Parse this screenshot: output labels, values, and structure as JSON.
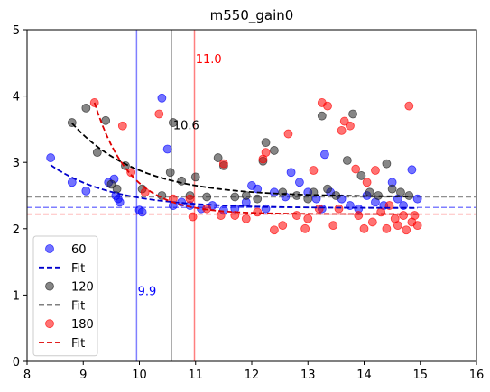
{
  "chart_data": {
    "type": "scatter",
    "title": "m550_gain0",
    "xlabel": "",
    "ylabel": "",
    "xlim": [
      8,
      16
    ],
    "ylim": [
      0,
      5
    ],
    "x_ticks": [
      "8",
      "9",
      "10",
      "11",
      "12",
      "13",
      "14",
      "15",
      "16"
    ],
    "y_ticks": [
      "0",
      "1",
      "2",
      "3",
      "4",
      "5"
    ],
    "grid": false,
    "legend_position": "lower-left",
    "series": [
      {
        "name": "60",
        "color": "#0000ff",
        "fit_label": "Fit",
        "fit_color": "#0000cc",
        "fit": {
          "a": 2.31,
          "b": 0.65,
          "k": 0.9
        },
        "asymptote": 2.32,
        "vline": 9.95,
        "vline_label": "9.9",
        "points": [
          [
            8.42,
            3.07
          ],
          [
            8.8,
            2.7
          ],
          [
            9.05,
            2.57
          ],
          [
            9.45,
            2.7
          ],
          [
            9.55,
            2.75
          ],
          [
            9.58,
            2.5
          ],
          [
            9.62,
            2.45
          ],
          [
            9.65,
            2.4
          ],
          [
            10.0,
            2.28
          ],
          [
            10.05,
            2.25
          ],
          [
            10.4,
            3.97
          ],
          [
            10.5,
            3.2
          ],
          [
            10.6,
            2.35
          ],
          [
            10.75,
            2.4
          ],
          [
            10.9,
            2.35
          ],
          [
            11.1,
            2.3
          ],
          [
            11.3,
            2.35
          ],
          [
            11.5,
            2.28
          ],
          [
            11.7,
            2.3
          ],
          [
            11.9,
            2.4
          ],
          [
            12.0,
            2.65
          ],
          [
            12.1,
            2.6
          ],
          [
            12.25,
            2.3
          ],
          [
            12.4,
            2.55
          ],
          [
            12.6,
            2.48
          ],
          [
            12.7,
            2.85
          ],
          [
            12.85,
            2.7
          ],
          [
            13.0,
            2.55
          ],
          [
            13.15,
            2.45
          ],
          [
            13.25,
            2.3
          ],
          [
            13.3,
            3.12
          ],
          [
            13.4,
            2.55
          ],
          [
            13.6,
            2.45
          ],
          [
            13.75,
            2.35
          ],
          [
            13.9,
            2.3
          ],
          [
            14.05,
            2.5
          ],
          [
            14.2,
            2.4
          ],
          [
            14.35,
            2.35
          ],
          [
            14.5,
            2.7
          ],
          [
            14.6,
            2.45
          ],
          [
            14.7,
            2.35
          ],
          [
            14.85,
            2.89
          ],
          [
            14.95,
            2.45
          ]
        ]
      },
      {
        "name": "120",
        "color": "#222222",
        "fit_label": "Fit",
        "fit_color": "#000000",
        "fit": {
          "a": 2.48,
          "b": 1.11,
          "k": 0.85
        },
        "asymptote": 2.48,
        "vline": 10.57,
        "vline_label": "10.6",
        "points": [
          [
            8.8,
            3.6
          ],
          [
            9.05,
            3.82
          ],
          [
            9.25,
            3.15
          ],
          [
            9.4,
            3.63
          ],
          [
            9.5,
            2.67
          ],
          [
            9.6,
            2.6
          ],
          [
            9.75,
            2.95
          ],
          [
            10.05,
            2.6
          ],
          [
            10.4,
            2.5
          ],
          [
            10.55,
            2.85
          ],
          [
            10.6,
            3.6
          ],
          [
            10.75,
            2.72
          ],
          [
            10.9,
            2.5
          ],
          [
            11.0,
            2.78
          ],
          [
            11.2,
            2.48
          ],
          [
            11.4,
            3.07
          ],
          [
            11.5,
            2.95
          ],
          [
            11.7,
            2.48
          ],
          [
            11.9,
            2.5
          ],
          [
            12.1,
            2.45
          ],
          [
            12.2,
            3.02
          ],
          [
            12.25,
            3.3
          ],
          [
            12.4,
            3.18
          ],
          [
            12.55,
            2.55
          ],
          [
            12.8,
            2.5
          ],
          [
            13.0,
            2.45
          ],
          [
            13.1,
            2.55
          ],
          [
            13.25,
            3.7
          ],
          [
            13.35,
            2.6
          ],
          [
            13.5,
            2.5
          ],
          [
            13.7,
            3.03
          ],
          [
            13.8,
            3.73
          ],
          [
            13.95,
            2.8
          ],
          [
            14.1,
            2.55
          ],
          [
            14.25,
            2.5
          ],
          [
            14.4,
            2.98
          ],
          [
            14.5,
            2.6
          ],
          [
            14.65,
            2.55
          ],
          [
            14.8,
            2.5
          ]
        ]
      },
      {
        "name": "180",
        "color": "#ff0000",
        "fit_label": "Fit",
        "fit_color": "#dd0000",
        "fit": {
          "a": 2.22,
          "b": 1.68,
          "k": 1.6
        },
        "asymptote": 2.22,
        "vline": 10.98,
        "vline_label": "11.0",
        "points": [
          [
            9.2,
            3.9
          ],
          [
            9.7,
            3.55
          ],
          [
            9.85,
            2.85
          ],
          [
            10.1,
            2.55
          ],
          [
            10.35,
            3.73
          ],
          [
            10.6,
            2.45
          ],
          [
            10.9,
            2.45
          ],
          [
            10.95,
            2.18
          ],
          [
            11.2,
            2.3
          ],
          [
            11.5,
            2.98
          ],
          [
            11.45,
            2.2
          ],
          [
            11.7,
            2.2
          ],
          [
            11.9,
            2.15
          ],
          [
            12.1,
            2.25
          ],
          [
            12.2,
            3.05
          ],
          [
            12.25,
            3.15
          ],
          [
            12.4,
            1.98
          ],
          [
            12.55,
            2.05
          ],
          [
            12.65,
            3.43
          ],
          [
            12.8,
            2.2
          ],
          [
            12.95,
            2.0
          ],
          [
            13.0,
            2.15
          ],
          [
            13.1,
            2.88
          ],
          [
            13.2,
            2.3
          ],
          [
            13.25,
            3.9
          ],
          [
            13.35,
            3.85
          ],
          [
            13.45,
            2.05
          ],
          [
            13.55,
            2.3
          ],
          [
            13.6,
            3.48
          ],
          [
            13.65,
            3.62
          ],
          [
            13.75,
            3.55
          ],
          [
            13.85,
            2.9
          ],
          [
            13.9,
            2.2
          ],
          [
            14.0,
            2.0
          ],
          [
            14.05,
            2.7
          ],
          [
            14.15,
            2.1
          ],
          [
            14.2,
            2.88
          ],
          [
            14.3,
            2.25
          ],
          [
            14.4,
            2.0
          ],
          [
            14.45,
            2.35
          ],
          [
            14.55,
            2.15
          ],
          [
            14.6,
            2.05
          ],
          [
            14.7,
            2.2
          ],
          [
            14.75,
            1.98
          ],
          [
            14.8,
            3.85
          ],
          [
            14.85,
            2.1
          ],
          [
            14.9,
            2.2
          ],
          [
            14.95,
            2.05
          ]
        ]
      }
    ],
    "annotations": [
      {
        "text": "11.0",
        "x": 11.0,
        "y": 4.5,
        "color": "#ff0000"
      },
      {
        "text": "10.6",
        "x": 10.6,
        "y": 3.5,
        "color": "#000000"
      },
      {
        "text": "9.9",
        "x": 9.97,
        "y": 1.0,
        "color": "#0000ff"
      }
    ],
    "legend": [
      {
        "label": "60",
        "kind": "marker",
        "color": "#0000ff"
      },
      {
        "label": "Fit",
        "kind": "dash",
        "color": "#0000cc"
      },
      {
        "label": "120",
        "kind": "marker",
        "color": "#222222"
      },
      {
        "label": "Fit",
        "kind": "dash",
        "color": "#000000"
      },
      {
        "label": "180",
        "kind": "marker",
        "color": "#ff0000"
      },
      {
        "label": "Fit",
        "kind": "dash",
        "color": "#dd0000"
      }
    ]
  }
}
